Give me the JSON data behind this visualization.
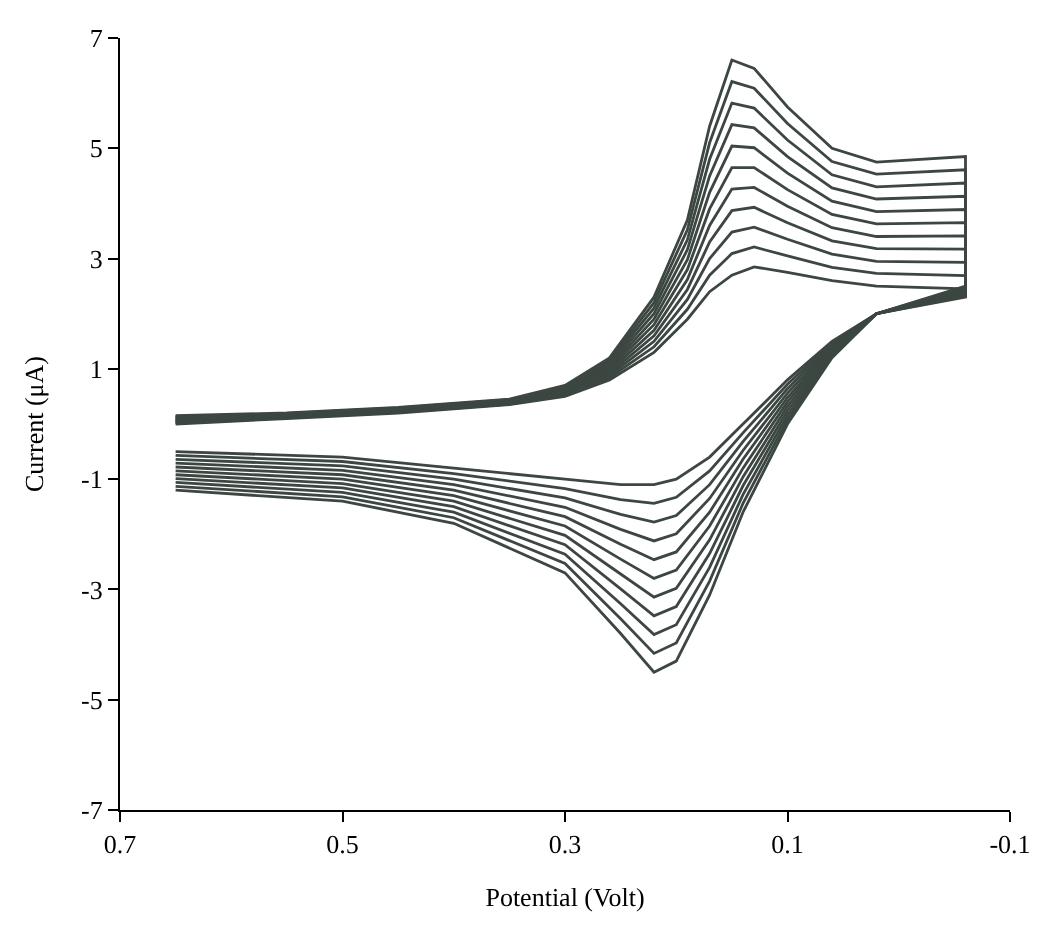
{
  "chart_data": {
    "type": "line",
    "xlabel": "Potential (Volt)",
    "ylabel": "Current (μA)",
    "x": [
      0.65,
      0.55,
      0.45,
      0.35,
      0.3,
      0.26,
      0.22,
      0.19,
      0.17,
      0.15,
      0.13,
      0.1,
      0.06,
      0.02,
      -0.06,
      -0.06,
      0.02,
      0.06,
      0.1,
      0.14,
      0.17,
      0.2,
      0.22,
      0.25,
      0.3,
      0.4,
      0.5,
      0.65
    ],
    "xlim": [
      0.7,
      -0.1
    ],
    "xticks": [
      0.7,
      0.5,
      0.3,
      0.1,
      -0.1
    ],
    "ylim": [
      -7,
      7
    ],
    "yticks": [
      -7,
      -5,
      -3,
      -1,
      1,
      3,
      5,
      7
    ],
    "marker": "none",
    "line_style": "solid",
    "series": [
      {
        "color": "#3c4742",
        "values": [
          0,
          0.1,
          0.2,
          0.35,
          0.5,
          0.8,
          1.3,
          1.9,
          2.4,
          2.7,
          2.85,
          2.75,
          2.6,
          2.5,
          2.45,
          2.3,
          2.0,
          1.5,
          0.8,
          0.0,
          -0.6,
          -1.0,
          -1.1,
          -1.1,
          -1.0,
          -0.8,
          -0.6,
          -0.5
        ]
      },
      {
        "color": "#3c4742",
        "values": [
          0.02,
          0.11,
          0.21,
          0.36,
          0.52,
          0.84,
          1.4,
          2.08,
          2.7,
          3.09,
          3.21,
          3.05,
          2.84,
          2.73,
          2.69,
          2.32,
          2.0,
          1.47,
          0.72,
          -0.16,
          -0.85,
          -1.33,
          -1.44,
          -1.37,
          -1.17,
          -0.9,
          -0.68,
          -0.57
        ]
      },
      {
        "color": "#3c4742",
        "values": [
          0.03,
          0.12,
          0.22,
          0.37,
          0.54,
          0.88,
          1.5,
          2.26,
          3.0,
          3.48,
          3.57,
          3.35,
          3.08,
          2.95,
          2.93,
          2.34,
          2.0,
          1.44,
          0.64,
          -0.32,
          -1.1,
          -1.66,
          -1.78,
          -1.64,
          -1.34,
          -1.0,
          -0.76,
          -0.64
        ]
      },
      {
        "color": "#3c4742",
        "values": [
          0.05,
          0.13,
          0.23,
          0.38,
          0.56,
          0.92,
          1.6,
          2.44,
          3.3,
          3.87,
          3.93,
          3.65,
          3.32,
          3.18,
          3.17,
          2.36,
          2.0,
          1.41,
          0.56,
          -0.48,
          -1.35,
          -1.99,
          -2.12,
          -1.91,
          -1.51,
          -1.1,
          -0.84,
          -0.71
        ]
      },
      {
        "color": "#3c4742",
        "values": [
          0.06,
          0.14,
          0.24,
          0.39,
          0.58,
          0.96,
          1.7,
          2.62,
          3.6,
          4.26,
          4.29,
          3.95,
          3.56,
          3.4,
          3.41,
          2.38,
          2.0,
          1.38,
          0.48,
          -0.64,
          -1.6,
          -2.32,
          -2.46,
          -2.18,
          -1.68,
          -1.2,
          -0.92,
          -0.78
        ]
      },
      {
        "color": "#3c4742",
        "values": [
          0.08,
          0.15,
          0.25,
          0.4,
          0.6,
          1.0,
          1.8,
          2.8,
          3.9,
          4.65,
          4.65,
          4.25,
          3.8,
          3.63,
          3.65,
          2.4,
          2.0,
          1.35,
          0.4,
          -0.8,
          -1.85,
          -2.65,
          -2.8,
          -2.45,
          -1.85,
          -1.3,
          -1.0,
          -0.85
        ]
      },
      {
        "color": "#3c4742",
        "values": [
          0.09,
          0.16,
          0.26,
          0.41,
          0.62,
          1.04,
          1.9,
          2.98,
          4.2,
          5.04,
          5.01,
          4.55,
          4.04,
          3.85,
          3.89,
          2.42,
          2.0,
          1.32,
          0.32,
          -0.96,
          -2.1,
          -2.98,
          -3.14,
          -2.72,
          -2.02,
          -1.4,
          -1.08,
          -0.92
        ]
      },
      {
        "color": "#3c4742",
        "values": [
          0.11,
          0.17,
          0.27,
          0.42,
          0.64,
          1.08,
          2.0,
          3.16,
          4.5,
          5.43,
          5.37,
          4.85,
          4.28,
          4.08,
          4.13,
          2.44,
          2.0,
          1.29,
          0.24,
          -1.12,
          -2.35,
          -3.31,
          -3.48,
          -2.99,
          -2.19,
          -1.5,
          -1.16,
          -0.99
        ]
      },
      {
        "color": "#3c4742",
        "values": [
          0.12,
          0.18,
          0.28,
          0.43,
          0.66,
          1.12,
          2.1,
          3.34,
          4.8,
          5.82,
          5.73,
          5.15,
          4.52,
          4.3,
          4.37,
          2.46,
          2.0,
          1.26,
          0.16,
          -1.28,
          -2.6,
          -3.64,
          -3.82,
          -3.26,
          -2.36,
          -1.6,
          -1.24,
          -1.06
        ]
      },
      {
        "color": "#3c4742",
        "values": [
          0.14,
          0.19,
          0.29,
          0.44,
          0.68,
          1.16,
          2.2,
          3.52,
          5.1,
          6.21,
          6.09,
          5.45,
          4.76,
          4.53,
          4.61,
          2.48,
          2.0,
          1.23,
          0.08,
          -1.44,
          -2.85,
          -3.97,
          -4.16,
          -3.53,
          -2.53,
          -1.7,
          -1.32,
          -1.13
        ]
      },
      {
        "color": "#3c4742",
        "values": [
          0.15,
          0.2,
          0.3,
          0.45,
          0.7,
          1.2,
          2.3,
          3.7,
          5.4,
          6.6,
          6.45,
          5.75,
          5.0,
          4.75,
          4.85,
          2.5,
          2.0,
          1.2,
          0.0,
          -1.6,
          -3.1,
          -4.3,
          -4.5,
          -3.8,
          -2.7,
          -1.8,
          -1.4,
          -1.2
        ]
      }
    ]
  }
}
